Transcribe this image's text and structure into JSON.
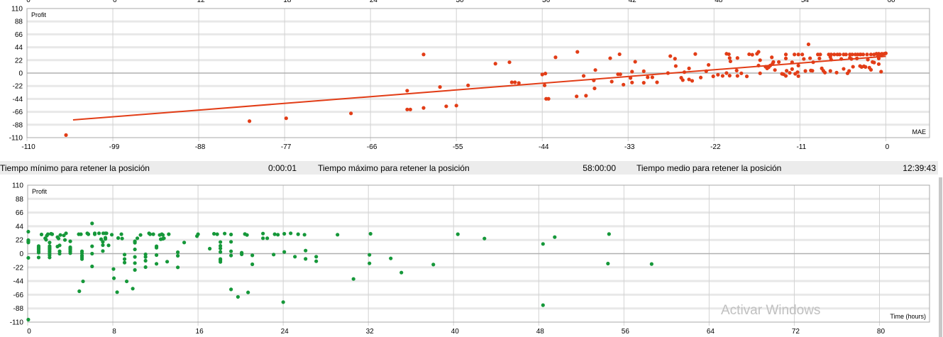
{
  "colors": {
    "scatter_top": "#e23d17",
    "trend": "#e23d17",
    "scatter_bottom": "#16983a",
    "grid_h": "#e8e8e8",
    "grid_v": "#d2d2d2",
    "zero": "#b0b0b0",
    "border": "#a8a8a8"
  },
  "clipped_axis": {
    "tick_labels": [
      "0",
      "6",
      "12",
      "18",
      "24",
      "30",
      "36",
      "42",
      "48",
      "54",
      "60"
    ]
  },
  "status": {
    "min_label": "Tiempo mínimo para retener la posición",
    "min_value": "0:00:01",
    "max_label": "Tiempo máximo para retener la posición",
    "max_value": "58:00:00",
    "avg_label": "Tiempo medio para retener la posición",
    "avg_value": "12:39:43"
  },
  "watermark": "Activar Windows",
  "chart_data": [
    {
      "type": "scatter",
      "ylabel": "Profit",
      "xlabel": "MAE",
      "xlim": [
        -110,
        5.6
      ],
      "ylim": [
        -110,
        110
      ],
      "xticks": [
        -110,
        -99,
        -88,
        -77,
        -66,
        -55,
        -44,
        -33,
        -22,
        -11,
        0
      ],
      "yticks": [
        110,
        88,
        66,
        44,
        22,
        0,
        -22,
        -44,
        -66,
        -88,
        -110
      ],
      "grid": true,
      "trendline": {
        "x": [
          -104.1,
          0
        ],
        "y": [
          -79.8,
          28.5
        ]
      },
      "points": [
        [
          -105,
          -105.6
        ],
        [
          -81.5,
          -81.9
        ],
        [
          -76.8,
          -77
        ],
        [
          -68.5,
          -68.7
        ],
        [
          -61.3,
          -30
        ],
        [
          -61.3,
          -62
        ],
        [
          -60.9,
          -62
        ],
        [
          -59.2,
          31.7
        ],
        [
          -59.2,
          -59.4
        ],
        [
          -57.1,
          -23.7
        ],
        [
          -56.3,
          -56.6
        ],
        [
          -55,
          -55.4
        ],
        [
          -53.5,
          -20.9
        ],
        [
          -50,
          16
        ],
        [
          -48.2,
          18.5
        ],
        [
          -47.9,
          -15.7
        ],
        [
          -47.5,
          -15.7
        ],
        [
          -47,
          -16.9
        ],
        [
          -44,
          -2.4
        ],
        [
          -43.6,
          -0.8
        ],
        [
          -43.7,
          -20.9
        ],
        [
          -43.5,
          -43.8
        ],
        [
          -43.2,
          -43.8
        ],
        [
          -42.3,
          26.9
        ],
        [
          -39.5,
          36.1
        ],
        [
          -39.6,
          -39.7
        ],
        [
          -38.7,
          -4.8
        ],
        [
          -38.4,
          -38.5
        ],
        [
          -37.4,
          -12.4
        ],
        [
          -37.3,
          -26.1
        ],
        [
          -37.2,
          5.2
        ],
        [
          -35.3,
          25.3
        ],
        [
          -35.1,
          -14.5
        ],
        [
          -34.3,
          -2
        ],
        [
          -34,
          -2
        ],
        [
          -34.1,
          32.1
        ],
        [
          -33.6,
          -19.7
        ],
        [
          -32.7,
          -8.4
        ],
        [
          -32.5,
          2.4
        ],
        [
          -32.5,
          -16.1
        ],
        [
          -32.1,
          19.3
        ],
        [
          -31,
          3.2
        ],
        [
          -31,
          -16.5
        ],
        [
          -30.5,
          -7.2
        ],
        [
          -29.9,
          -7.2
        ],
        [
          -29.3,
          -15.7
        ],
        [
          -27.9,
          0
        ],
        [
          -27.6,
          28.9
        ],
        [
          -27,
          24.5
        ],
        [
          -26.9,
          12
        ],
        [
          -26.2,
          -8
        ],
        [
          -26,
          -12
        ],
        [
          -25.8,
          1.6
        ],
        [
          -25.2,
          8
        ],
        [
          -25.2,
          -10.8
        ],
        [
          -24.8,
          -13.2
        ],
        [
          -24.4,
          32.5
        ],
        [
          -23.7,
          -7.6
        ],
        [
          -23,
          3.2
        ],
        [
          -22.7,
          14
        ],
        [
          -22.1,
          -5.6
        ],
        [
          -21.5,
          -2.8
        ],
        [
          -20.9,
          -4.8
        ],
        [
          -20.4,
          32.9
        ],
        [
          -20.1,
          32.1
        ],
        [
          -20.4,
          0
        ],
        [
          -20,
          25.7
        ],
        [
          -19.9,
          20
        ],
        [
          -20,
          -4.4
        ],
        [
          -19.1,
          4.4
        ],
        [
          -19,
          -4.8
        ],
        [
          -19,
          25.7
        ],
        [
          -18.5,
          -0.4
        ],
        [
          -17.8,
          -5.6
        ],
        [
          -17.5,
          32.1
        ],
        [
          -17.1,
          31.3
        ],
        [
          -16.5,
          32.9
        ],
        [
          -16.3,
          36.1
        ],
        [
          -16.3,
          12.8
        ],
        [
          -16.1,
          22
        ],
        [
          -16.1,
          -0.4
        ],
        [
          -15.4,
          10.8
        ],
        [
          -15.2,
          8
        ],
        [
          -15,
          10
        ],
        [
          -14.8,
          12.8
        ],
        [
          -14.6,
          26.9
        ],
        [
          -14.4,
          18.9
        ],
        [
          -14.5,
          16
        ],
        [
          -14.2,
          5.2
        ],
        [
          -13.7,
          18.9
        ],
        [
          -13.3,
          -1.2
        ],
        [
          -13.1,
          -2
        ],
        [
          -12.8,
          -4.8
        ],
        [
          -12.8,
          31.7
        ],
        [
          -12.8,
          24.9
        ],
        [
          -12.7,
          4
        ],
        [
          -12.3,
          0.4
        ],
        [
          -12,
          18.5
        ],
        [
          -12,
          6.8
        ],
        [
          -11.7,
          31.7
        ],
        [
          -11.2,
          31.7
        ],
        [
          -10.7,
          31.7
        ],
        [
          -11.6,
          -1.2
        ],
        [
          -11.3,
          1.6
        ],
        [
          -11.2,
          12.8
        ],
        [
          -11.2,
          -5.2
        ],
        [
          -10.5,
          24.1
        ],
        [
          -10.3,
          3.6
        ],
        [
          -9.9,
          49
        ],
        [
          -9.7,
          25.3
        ],
        [
          -9.6,
          4.4
        ],
        [
          -9.4,
          4
        ],
        [
          -9.3,
          18.5
        ],
        [
          -8.7,
          31.7
        ],
        [
          -8.4,
          31.7
        ],
        [
          -8.5,
          24.9
        ],
        [
          -8.2,
          8
        ],
        [
          -8,
          4
        ],
        [
          -7.8,
          0.8
        ],
        [
          -7.3,
          31.7
        ],
        [
          -7,
          31.7
        ],
        [
          -6.6,
          31.7
        ],
        [
          -6.2,
          31.7
        ],
        [
          -5.9,
          31.7
        ],
        [
          -5.4,
          31.7
        ],
        [
          -5.1,
          31.7
        ],
        [
          -4.6,
          31.7
        ],
        [
          -4.3,
          31.7
        ],
        [
          -3.9,
          31.7
        ],
        [
          -3.6,
          31.7
        ],
        [
          -3.2,
          31.7
        ],
        [
          -2.9,
          31.7
        ],
        [
          -7.1,
          27.3
        ],
        [
          -7,
          22.9
        ],
        [
          -7.1,
          3.6
        ],
        [
          -6.3,
          0.8
        ],
        [
          -5.7,
          24.1
        ],
        [
          -5.4,
          7.2
        ],
        [
          -4.9,
          -0.4
        ],
        [
          -4.7,
          3.6
        ],
        [
          -4.6,
          26.1
        ],
        [
          -4.4,
          24.1
        ],
        [
          -4.2,
          10.8
        ],
        [
          -3.7,
          24.9
        ],
        [
          -3.3,
          12
        ],
        [
          -3.1,
          10.4
        ],
        [
          -2.8,
          11.6
        ],
        [
          -2.6,
          10.4
        ],
        [
          -3.3,
          31.7
        ],
        [
          -2.4,
          31.7
        ],
        [
          -1.9,
          31.7
        ],
        [
          -1.5,
          31.7
        ],
        [
          -2.3,
          22.9
        ],
        [
          -2.1,
          9.2
        ],
        [
          -1.9,
          5.6
        ],
        [
          -1.7,
          18.9
        ],
        [
          -1.5,
          18
        ],
        [
          -1.2,
          32.9
        ],
        [
          -0.9,
          32.9
        ],
        [
          -0.7,
          31.7
        ],
        [
          -0.5,
          32.9
        ],
        [
          -0.2,
          32.9
        ],
        [
          0,
          33.7
        ],
        [
          -0.9,
          24.9
        ],
        [
          -0.9,
          15.3
        ],
        [
          -0.6,
          2.4
        ],
        [
          -1,
          28.9
        ],
        [
          -0.5,
          30.1
        ]
      ]
    },
    {
      "type": "scatter",
      "ylabel": "Profit",
      "xlabel": "Time (hours)",
      "xlim": [
        0,
        84.7
      ],
      "ylim": [
        -110,
        110
      ],
      "xticks": [
        0,
        8,
        16,
        24,
        32,
        40,
        48,
        56,
        64,
        72,
        80
      ],
      "yticks": [
        110,
        88,
        66,
        44,
        22,
        0,
        -22,
        -44,
        -66,
        -88,
        -110
      ],
      "grid": true,
      "points": [
        [
          0.06,
          35.3
        ],
        [
          0.06,
          21.7
        ],
        [
          0.06,
          19.8
        ],
        [
          0.06,
          17.9
        ],
        [
          0.06,
          -6.8
        ],
        [
          0.06,
          -106
        ],
        [
          1.03,
          12.2
        ],
        [
          1.03,
          10.3
        ],
        [
          1.03,
          8.4
        ],
        [
          1.03,
          6.5
        ],
        [
          1.03,
          3.8
        ],
        [
          1.03,
          1.5
        ],
        [
          1.03,
          -6.1
        ],
        [
          1.3,
          30.8
        ],
        [
          1.65,
          24.7
        ],
        [
          1.73,
          22.4
        ],
        [
          1.8,
          28.9
        ],
        [
          1.9,
          31.2
        ],
        [
          2.06,
          17.9
        ],
        [
          2.06,
          12.2
        ],
        [
          2.06,
          10.3
        ],
        [
          2.06,
          8.4
        ],
        [
          2.06,
          6.5
        ],
        [
          2.06,
          3.8
        ],
        [
          2.06,
          0.8
        ],
        [
          2.06,
          -2.3
        ],
        [
          2.06,
          -6.1
        ],
        [
          2.2,
          31.9
        ],
        [
          2.3,
          31.2
        ],
        [
          2.8,
          26.6
        ],
        [
          2.9,
          24.3
        ],
        [
          2.8,
          11.4
        ],
        [
          3,
          13.3
        ],
        [
          3,
          3.8
        ],
        [
          3,
          0
        ],
        [
          3.07,
          30
        ],
        [
          3.4,
          29.3
        ],
        [
          3.5,
          22
        ],
        [
          3.6,
          32.7
        ],
        [
          4,
          19.8
        ],
        [
          4,
          10.3
        ],
        [
          4,
          8.4
        ],
        [
          4,
          6.5
        ],
        [
          4,
          3.8
        ],
        [
          4,
          0.8
        ],
        [
          4.8,
          31.2
        ],
        [
          5,
          31.2
        ],
        [
          4.85,
          -60.4
        ],
        [
          5.1,
          3.8
        ],
        [
          5.1,
          0.8
        ],
        [
          5.1,
          -3
        ],
        [
          5.1,
          -5.7
        ],
        [
          5.1,
          -8.7
        ],
        [
          5.2,
          -44.5
        ],
        [
          5.6,
          32.7
        ],
        [
          5.7,
          31.2
        ],
        [
          6.05,
          48.6
        ],
        [
          6.05,
          11.8
        ],
        [
          6.05,
          0
        ],
        [
          6.05,
          -20.5
        ],
        [
          6.3,
          32.7
        ],
        [
          6.3,
          31.2
        ],
        [
          6.7,
          32.7
        ],
        [
          6.9,
          23.2
        ],
        [
          7.06,
          19
        ],
        [
          7.06,
          13.7
        ],
        [
          7.06,
          4.2
        ],
        [
          7.1,
          32.7
        ],
        [
          7.3,
          32.7
        ],
        [
          7.4,
          32.7
        ],
        [
          7.3,
          25.5
        ],
        [
          7.3,
          23.6
        ],
        [
          7.6,
          13.3
        ],
        [
          7.9,
          30.4
        ],
        [
          8.06,
          -24.7
        ],
        [
          8.1,
          -39.5
        ],
        [
          8.4,
          -61.9
        ],
        [
          8.5,
          25.1
        ],
        [
          8.8,
          31.2
        ],
        [
          8.87,
          24.3
        ],
        [
          9.1,
          -1.5
        ],
        [
          9.1,
          -8.7
        ],
        [
          9.1,
          -14.4
        ],
        [
          9.3,
          -44.5
        ],
        [
          9.87,
          -56.2
        ],
        [
          10.07,
          19.8
        ],
        [
          10.07,
          17.5
        ],
        [
          10.07,
          6.8
        ],
        [
          10.07,
          -5.3
        ],
        [
          10.07,
          -15.2
        ],
        [
          10.07,
          -26.2
        ],
        [
          10.3,
          24.7
        ],
        [
          10.6,
          30
        ],
        [
          11.07,
          -1.1
        ],
        [
          11.07,
          -5.3
        ],
        [
          11.07,
          -11.4
        ],
        [
          11.07,
          -21.7
        ],
        [
          11.4,
          32.7
        ],
        [
          11.5,
          31.2
        ],
        [
          11.8,
          31.2
        ],
        [
          12.1,
          11.8
        ],
        [
          12.1,
          9.5
        ],
        [
          12.1,
          -2.3
        ],
        [
          12.1,
          -16.3
        ],
        [
          12.4,
          30
        ],
        [
          12.6,
          31.2
        ],
        [
          12.7,
          30
        ],
        [
          12.5,
          23.2
        ],
        [
          12.7,
          23.9
        ],
        [
          12.8,
          24.7
        ],
        [
          13.1,
          -12.9
        ],
        [
          13.25,
          31.2
        ],
        [
          14.1,
          2.3
        ],
        [
          14.1,
          -3.4
        ],
        [
          14.1,
          -22
        ],
        [
          14.7,
          17.9
        ],
        [
          15.9,
          28.1
        ],
        [
          16,
          31.2
        ],
        [
          17.1,
          8
        ],
        [
          17.5,
          31.9
        ],
        [
          17.8,
          31.2
        ],
        [
          18.1,
          18.6
        ],
        [
          18.1,
          12.5
        ],
        [
          18.1,
          8.4
        ],
        [
          18.1,
          2.7
        ],
        [
          18.1,
          -8.7
        ],
        [
          18.1,
          -10.6
        ],
        [
          18.1,
          -13.3
        ],
        [
          18.5,
          32.3
        ],
        [
          19.1,
          30.8
        ],
        [
          19.1,
          19
        ],
        [
          19.1,
          3.8
        ],
        [
          19.1,
          -3
        ],
        [
          19.1,
          -57.4
        ],
        [
          19.75,
          -69.5
        ],
        [
          20.1,
          1.5
        ],
        [
          20.1,
          -1.1
        ],
        [
          20.4,
          31.5
        ],
        [
          20.6,
          30
        ],
        [
          20.7,
          -62.3
        ],
        [
          21.1,
          -2.7
        ],
        [
          21.1,
          -17.1
        ],
        [
          22.1,
          32.3
        ],
        [
          22.1,
          24.7
        ],
        [
          22.5,
          24.7
        ],
        [
          23.1,
          -1.5
        ],
        [
          23.2,
          31.2
        ],
        [
          23.5,
          30.4
        ],
        [
          24,
          -77.9
        ],
        [
          24.1,
          31.9
        ],
        [
          24.1,
          2.7
        ],
        [
          24.7,
          32.7
        ],
        [
          25.1,
          -4.9
        ],
        [
          25.4,
          31.2
        ],
        [
          26,
          30.4
        ],
        [
          26.1,
          4.9
        ],
        [
          26.1,
          -8.4
        ],
        [
          27.1,
          -4.9
        ],
        [
          27.1,
          -12.2
        ],
        [
          29.1,
          30.4
        ],
        [
          30.6,
          -40.7
        ],
        [
          32.1,
          -1.9
        ],
        [
          32.1,
          -15.6
        ],
        [
          32.2,
          31.9
        ],
        [
          34.1,
          -7.6
        ],
        [
          35.1,
          -30.4
        ],
        [
          38.1,
          -17.5
        ],
        [
          40.4,
          31.2
        ],
        [
          42.9,
          24.3
        ],
        [
          48.4,
          15.6
        ],
        [
          48.4,
          -82.8
        ],
        [
          49.5,
          26.6
        ],
        [
          54.6,
          31.5
        ],
        [
          54.5,
          -16
        ],
        [
          58.6,
          -16.7
        ]
      ]
    }
  ]
}
